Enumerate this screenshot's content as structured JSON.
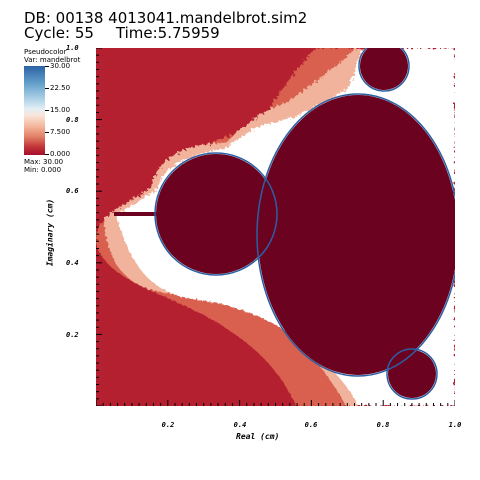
{
  "header": {
    "db": "DB: 00138 4013041.mandelbrot.sim2",
    "cycle": "Cycle: 55",
    "time": "Time:5.75959"
  },
  "legend": {
    "title_line1": "Pseudocolor",
    "title_line2": "Var: mandelbrot",
    "ticks": [
      "30.00",
      "22.50",
      "15.00",
      "7.500",
      "0.000"
    ],
    "max_label": "Max: 30.00",
    "min_label": "Min: 0.000"
  },
  "chart_data": {
    "type": "heatmap",
    "title": "",
    "xlabel": "Real (cm)",
    "ylabel": "Imaginary (cm)",
    "xlim": [
      0.0,
      1.0
    ],
    "ylim": [
      0.0,
      1.0
    ],
    "x_ticks": [
      "0.2",
      "0.4",
      "0.6",
      "0.8",
      "1.0"
    ],
    "y_ticks": [
      "0.2",
      "0.4",
      "0.6",
      "0.8",
      "1.0"
    ],
    "colormap": "diverging blue-white-red",
    "value_range": [
      0.0,
      30.0
    ],
    "colors": {
      "inside": "#6b0220",
      "outer": "#b4202f",
      "mid": "#d9604f",
      "near": "#f1b39b",
      "edge": "#ffffff",
      "boundary": "#2b5fa3"
    }
  }
}
